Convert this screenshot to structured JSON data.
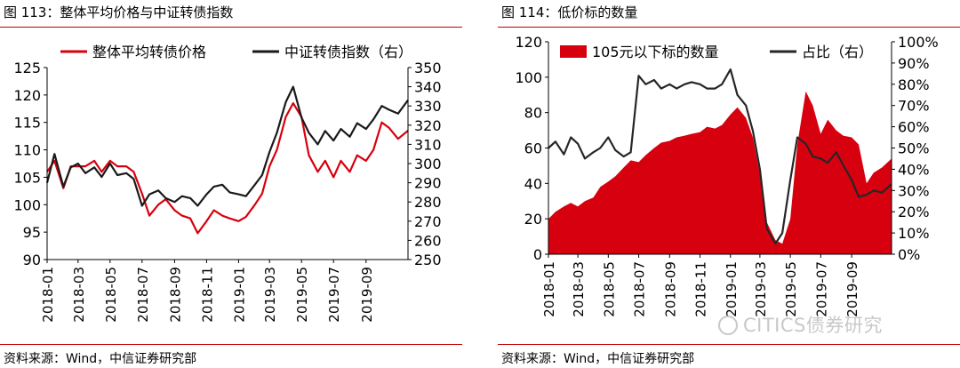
{
  "chart_data": [
    {
      "type": "line",
      "title": "图 113：整体平均价格与中证转债指数",
      "source": "资料来源：Wind，中信证券研究部",
      "x_ticks": [
        "2018-01",
        "2018-03",
        "2018-05",
        "2018-07",
        "2018-09",
        "2018-11",
        "2019-01",
        "2019-03",
        "2019-05",
        "2019-07",
        "2019-09"
      ],
      "x_range": [
        "2018-01-01",
        "2019-11-20"
      ],
      "left_axis": {
        "ylim": [
          90,
          125
        ],
        "ticks": [
          90,
          95,
          100,
          105,
          110,
          115,
          120,
          125
        ]
      },
      "right_axis": {
        "ylim": [
          250,
          350
        ],
        "ticks": [
          250,
          260,
          270,
          280,
          290,
          300,
          310,
          320,
          330,
          340,
          350
        ]
      },
      "legend_position": "top",
      "series": [
        {
          "name": "整体平均转债价格",
          "axis": "left",
          "color": "#d7000f",
          "x": [
            "2018-01-01",
            "2018-01-15",
            "2018-02-01",
            "2018-02-15",
            "2018-03-01",
            "2018-03-15",
            "2018-04-01",
            "2018-04-15",
            "2018-05-01",
            "2018-05-15",
            "2018-06-01",
            "2018-06-15",
            "2018-07-01",
            "2018-07-15",
            "2018-08-01",
            "2018-08-15",
            "2018-09-01",
            "2018-09-15",
            "2018-10-01",
            "2018-10-15",
            "2018-11-01",
            "2018-11-15",
            "2018-12-01",
            "2018-12-15",
            "2019-01-01",
            "2019-01-15",
            "2019-02-01",
            "2019-02-15",
            "2019-03-01",
            "2019-03-15",
            "2019-04-01",
            "2019-04-15",
            "2019-05-01",
            "2019-05-15",
            "2019-06-01",
            "2019-06-15",
            "2019-07-01",
            "2019-07-15",
            "2019-08-01",
            "2019-08-15",
            "2019-09-01",
            "2019-09-15",
            "2019-10-01",
            "2019-10-15",
            "2019-11-01",
            "2019-11-20"
          ],
          "y": [
            106,
            108,
            103,
            107,
            107,
            107,
            108,
            106,
            108,
            107,
            107,
            106,
            102,
            98,
            100,
            101,
            99,
            98,
            97.5,
            94.8,
            97,
            99,
            98,
            97.5,
            97,
            97.8,
            100,
            102,
            107,
            110,
            116,
            118.5,
            116,
            109,
            106,
            108,
            105,
            108,
            106,
            109,
            108,
            110,
            115,
            114,
            112,
            113.5
          ]
        },
        {
          "name": "中证转债指数（右）",
          "axis": "right",
          "color": "#1a1a1a",
          "x": [
            "2018-01-01",
            "2018-01-15",
            "2018-02-01",
            "2018-02-15",
            "2018-03-01",
            "2018-03-15",
            "2018-04-01",
            "2018-04-15",
            "2018-05-01",
            "2018-05-15",
            "2018-06-01",
            "2018-06-15",
            "2018-07-01",
            "2018-07-15",
            "2018-08-01",
            "2018-08-15",
            "2018-09-01",
            "2018-09-15",
            "2018-10-01",
            "2018-10-15",
            "2018-11-01",
            "2018-11-15",
            "2018-12-01",
            "2018-12-15",
            "2019-01-01",
            "2019-01-15",
            "2019-02-01",
            "2019-02-15",
            "2019-03-01",
            "2019-03-15",
            "2019-04-01",
            "2019-04-15",
            "2019-05-01",
            "2019-05-15",
            "2019-06-01",
            "2019-06-15",
            "2019-07-01",
            "2019-07-15",
            "2019-08-01",
            "2019-08-15",
            "2019-09-01",
            "2019-09-15",
            "2019-10-01",
            "2019-10-15",
            "2019-11-01",
            "2019-11-20"
          ],
          "y": [
            290,
            305,
            288,
            298,
            300,
            295,
            298,
            293,
            300,
            294,
            295,
            292,
            278,
            284,
            286,
            282,
            280,
            283,
            282,
            278,
            284,
            288,
            289,
            285,
            284,
            283,
            289,
            294,
            306,
            316,
            332,
            340,
            324,
            316,
            310,
            317,
            312,
            318,
            314,
            321,
            318,
            323,
            330,
            328,
            326,
            333
          ]
        }
      ]
    },
    {
      "type": "area",
      "title": "图 114：低价标的数量",
      "source": "资料来源：Wind，中信证券研究部",
      "x_ticks": [
        "2018-01",
        "2018-03",
        "2018-05",
        "2018-07",
        "2018-09",
        "2018-11",
        "2019-01",
        "2019-03",
        "2019-05",
        "2019-07",
        "2019-09"
      ],
      "x_range": [
        "2018-01-01",
        "2019-11-20"
      ],
      "left_axis": {
        "ylim": [
          0,
          120
        ],
        "ticks": [
          0,
          20,
          40,
          60,
          80,
          100,
          120
        ]
      },
      "right_axis": {
        "ylim": [
          0,
          100
        ],
        "ticks": [
          "0%",
          "10%",
          "20%",
          "30%",
          "40%",
          "50%",
          "60%",
          "70%",
          "80%",
          "90%",
          "100%"
        ]
      },
      "legend_position": "top",
      "series": [
        {
          "name": "105元以下标的数量",
          "axis": "left",
          "kind": "area",
          "color": "#d7000f",
          "x": [
            "2018-01-01",
            "2018-01-15",
            "2018-02-01",
            "2018-02-15",
            "2018-03-01",
            "2018-03-15",
            "2018-04-01",
            "2018-04-15",
            "2018-05-01",
            "2018-05-15",
            "2018-06-01",
            "2018-06-15",
            "2018-07-01",
            "2018-07-15",
            "2018-08-01",
            "2018-08-15",
            "2018-09-01",
            "2018-09-15",
            "2018-10-01",
            "2018-10-15",
            "2018-11-01",
            "2018-11-15",
            "2018-12-01",
            "2018-12-15",
            "2019-01-01",
            "2019-01-15",
            "2019-02-01",
            "2019-02-15",
            "2019-03-01",
            "2019-03-15",
            "2019-04-01",
            "2019-04-15",
            "2019-05-01",
            "2019-05-15",
            "2019-06-01",
            "2019-06-15",
            "2019-07-01",
            "2019-07-15",
            "2019-08-01",
            "2019-08-15",
            "2019-09-01",
            "2019-09-15",
            "2019-10-01",
            "2019-10-15",
            "2019-11-01",
            "2019-11-20"
          ],
          "y": [
            20,
            24,
            27,
            29,
            27,
            30,
            32,
            38,
            41,
            44,
            49,
            53,
            52,
            56,
            60,
            63,
            64,
            66,
            67,
            68,
            69,
            72,
            71,
            73,
            79,
            83,
            77,
            66,
            45,
            18,
            8,
            6,
            20,
            62,
            92,
            84,
            68,
            76,
            70,
            67,
            66,
            62,
            40,
            46,
            49,
            54
          ]
        },
        {
          "name": "占比（右）",
          "axis": "right",
          "kind": "line",
          "color": "#262626",
          "x": [
            "2018-01-01",
            "2018-01-15",
            "2018-02-01",
            "2018-02-15",
            "2018-03-01",
            "2018-03-15",
            "2018-04-01",
            "2018-04-15",
            "2018-05-01",
            "2018-05-15",
            "2018-06-01",
            "2018-06-15",
            "2018-07-01",
            "2018-07-15",
            "2018-08-01",
            "2018-08-15",
            "2018-09-01",
            "2018-09-15",
            "2018-10-01",
            "2018-10-15",
            "2018-11-01",
            "2018-11-15",
            "2018-12-01",
            "2018-12-15",
            "2019-01-01",
            "2019-01-15",
            "2019-02-01",
            "2019-02-15",
            "2019-03-01",
            "2019-03-15",
            "2019-04-01",
            "2019-04-15",
            "2019-05-01",
            "2019-05-15",
            "2019-06-01",
            "2019-06-15",
            "2019-07-01",
            "2019-07-15",
            "2019-08-01",
            "2019-08-15",
            "2019-09-01",
            "2019-09-15",
            "2019-10-01",
            "2019-10-15",
            "2019-11-01",
            "2019-11-20"
          ],
          "y": [
            50,
            53,
            47,
            55,
            52,
            45,
            48,
            50,
            55,
            49,
            46,
            48,
            84,
            80,
            82,
            78,
            80,
            78,
            80,
            81,
            80,
            78,
            78,
            80,
            87,
            75,
            70,
            58,
            40,
            12,
            5,
            10,
            35,
            55,
            52,
            46,
            45,
            43,
            48,
            42,
            35,
            27,
            28,
            30,
            29,
            33
          ]
        }
      ]
    }
  ],
  "watermark": {
    "text": "CITICS债券研究",
    "icon": "wechat-icon"
  }
}
